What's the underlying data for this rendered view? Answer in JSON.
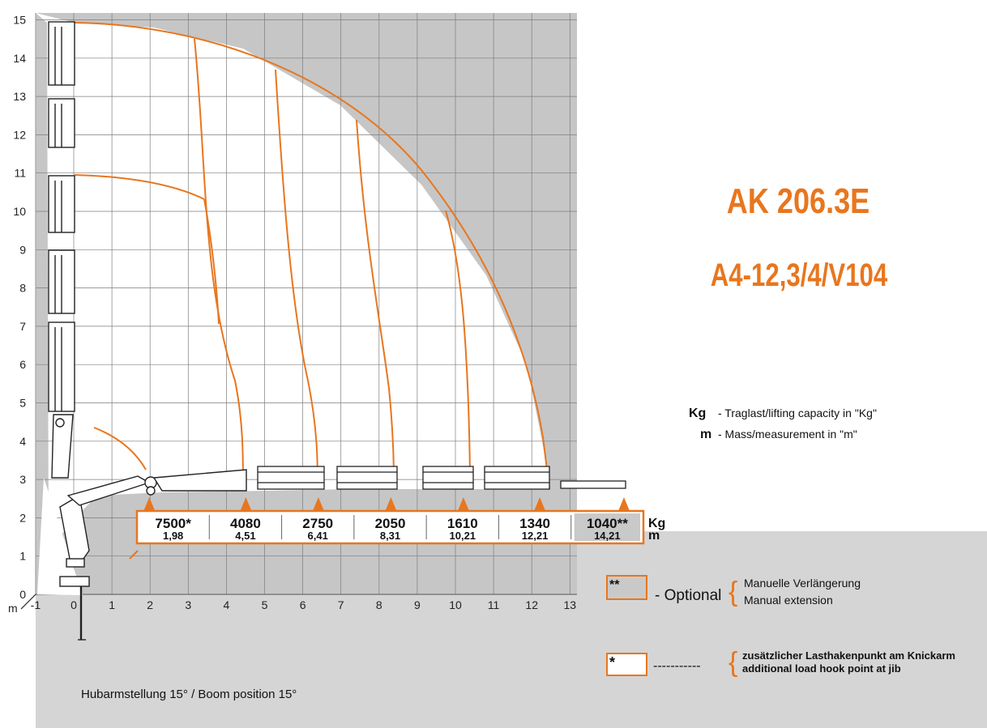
{
  "title": "AK 206.3E",
  "subtitle": "A4-12,3/4/V104",
  "colors": {
    "accent": "#e8761e",
    "grid_bg": "#c6c6c6",
    "lower_bg": "#d5d5d5",
    "optional_fill": "#c9c9c9",
    "grid_line": "#7d7d7d"
  },
  "axis": {
    "unit": "m",
    "x_ticks": [
      "-1",
      "0",
      "1",
      "2",
      "3",
      "4",
      "5",
      "6",
      "7",
      "8",
      "9",
      "10",
      "11",
      "12",
      "13"
    ],
    "y_ticks": [
      "0",
      "1",
      "2",
      "3",
      "4",
      "5",
      "6",
      "7",
      "8",
      "9",
      "10",
      "11",
      "12",
      "13",
      "14",
      "15"
    ],
    "x_range": [
      -1,
      13
    ],
    "y_range": [
      0,
      15
    ]
  },
  "load_points": [
    {
      "load": "7500*",
      "reach": "1,98",
      "x": 1.98,
      "optional": false
    },
    {
      "load": "4080",
      "reach": "4,51",
      "x": 4.51,
      "optional": false
    },
    {
      "load": "2750",
      "reach": "6,41",
      "x": 6.41,
      "optional": false
    },
    {
      "load": "2050",
      "reach": "8,31",
      "x": 8.31,
      "optional": false
    },
    {
      "load": "1610",
      "reach": "10,21",
      "x": 10.21,
      "optional": false
    },
    {
      "load": "1340",
      "reach": "12,21",
      "x": 12.21,
      "optional": false
    },
    {
      "load": "1040**",
      "reach": "14,21",
      "x": 14.21,
      "optional": true
    }
  ],
  "table_units": {
    "load": "Kg",
    "reach": "m"
  },
  "legend": {
    "kg_symbol": "Kg",
    "kg_text": "- Traglast/lifting capacity  in \"Kg\"",
    "m_symbol": "m",
    "m_text": "- Mass/measurement  in \"m\"",
    "optional_marker": "**",
    "optional_word": "- Optional",
    "optional_line1": "Manuelle Verlängerung",
    "optional_line2": "Manual extension",
    "jib_marker": "*",
    "jib_dashes": "-----------",
    "jib_line1": "zusätzlicher Lasthakenpunkt am Knickarm",
    "jib_line2": "additional load hook point at jib"
  },
  "footer_note": "Hubarmstellung 15° / Boom position 15°"
}
